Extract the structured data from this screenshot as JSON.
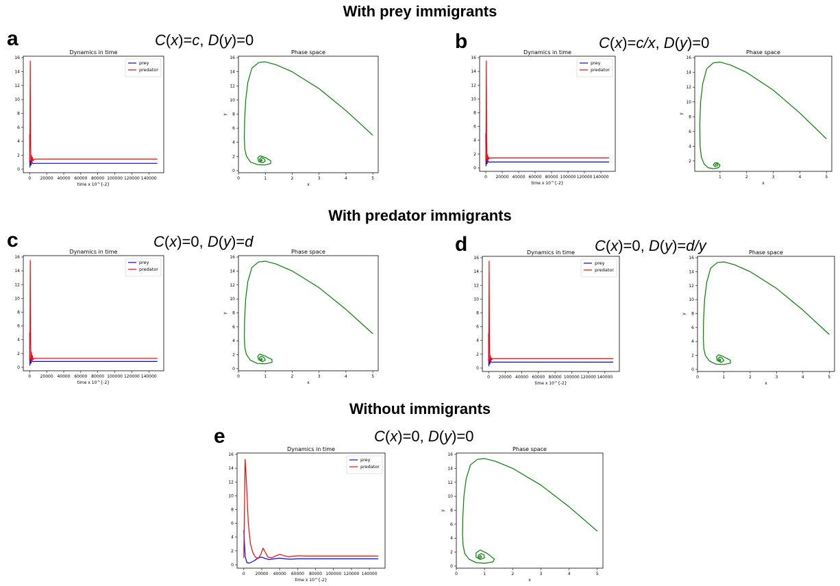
{
  "sections": {
    "prey": "With prey immigrants",
    "predator": "With predator immigrants",
    "none": "Without immigrants"
  },
  "panels": [
    {
      "letter": "a",
      "formula": {
        "c_val": "c",
        "d_val": "0"
      }
    },
    {
      "letter": "b",
      "formula": {
        "c_val": "c/x",
        "d_val": "0"
      }
    },
    {
      "letter": "c",
      "formula": {
        "c_val": "0",
        "d_val": "d"
      }
    },
    {
      "letter": "d",
      "formula": {
        "c_val": "0",
        "d_val": "d/y"
      }
    },
    {
      "letter": "e",
      "formula": {
        "c_val": "0",
        "d_val": "0"
      }
    }
  ],
  "formula_parts": {
    "c": "C",
    "d": "D",
    "x": "x",
    "y": "y",
    "open": "(",
    "close": ")=",
    "sep": ", "
  },
  "colors": {
    "prey": "#0000ff",
    "predator": "#ff0000",
    "phase": "#008000"
  },
  "chart_data": [
    {
      "panel": "a",
      "type": "line",
      "title": "Dynamics in time",
      "xlabel": "time x 10^{-2}",
      "ylabel": "",
      "xlim": [
        -7500,
        157500
      ],
      "ylim": [
        -0.5,
        16.2
      ],
      "xticks": [
        0,
        20000,
        40000,
        60000,
        80000,
        100000,
        120000,
        140000
      ],
      "yticks": [
        0,
        2,
        4,
        6,
        8,
        10,
        12,
        14,
        16
      ],
      "legend": "top-right",
      "series": [
        {
          "name": "prey",
          "color": "#0000ff",
          "x": [
            0,
            300,
            800,
            1500,
            2500,
            4000,
            6000,
            150000
          ],
          "y": [
            5.0,
            0.3,
            1.2,
            0.6,
            1.0,
            0.82,
            0.85,
            0.85
          ]
        },
        {
          "name": "predator",
          "color": "#ff0000",
          "x": [
            0,
            400,
            700,
            1100,
            1600,
            2100,
            2600,
            3200,
            4000,
            5000,
            150000
          ],
          "y": [
            1.0,
            6.0,
            15.5,
            4.0,
            0.8,
            2.0,
            1.0,
            1.7,
            1.2,
            1.45,
            1.45
          ]
        }
      ]
    },
    {
      "panel": "a",
      "type": "line",
      "title": "Phase space",
      "xlabel": "x",
      "ylabel": "y",
      "xlim": [
        0,
        5.2
      ],
      "ylim": [
        -0.3,
        16.2
      ],
      "xticks": [
        0,
        1,
        2,
        3,
        4,
        5
      ],
      "yticks": [
        0,
        2,
        4,
        6,
        8,
        10,
        12,
        14,
        16
      ],
      "series": [
        {
          "name": "",
          "color": "#008000",
          "x": [
            5.0,
            4.0,
            3.0,
            2.0,
            1.4,
            1.0,
            0.75,
            0.5,
            0.35,
            0.27,
            0.23,
            0.22,
            0.24,
            0.3,
            0.45,
            0.7,
            1.0,
            1.2,
            1.2,
            1.0,
            0.8,
            0.72,
            0.75,
            0.9,
            1.0,
            0.95,
            0.85,
            0.78,
            0.8,
            0.87,
            0.88,
            0.85,
            0.83,
            0.85
          ],
          "y": [
            5.0,
            8.5,
            11.6,
            14.0,
            15.0,
            15.4,
            15.3,
            14.5,
            12.5,
            10.0,
            7.0,
            4.5,
            3.0,
            2.0,
            1.2,
            0.85,
            0.8,
            1.0,
            1.4,
            1.85,
            2.1,
            1.8,
            1.3,
            1.1,
            1.35,
            1.7,
            1.85,
            1.6,
            1.35,
            1.35,
            1.5,
            1.6,
            1.5,
            1.45
          ]
        }
      ]
    },
    {
      "panel": "b",
      "type": "line",
      "title": "Dynamics in time",
      "xlabel": "time x 10^{-2}",
      "ylabel": "",
      "xlim": [
        -7500,
        157500
      ],
      "ylim": [
        -0.5,
        16.2
      ],
      "xticks": [
        0,
        20000,
        40000,
        60000,
        80000,
        100000,
        120000,
        140000
      ],
      "yticks": [
        0,
        2,
        4,
        6,
        8,
        10,
        12,
        14,
        16
      ],
      "legend": "top-right",
      "series": [
        {
          "name": "prey",
          "color": "#0000ff",
          "x": [
            0,
            300,
            800,
            1500,
            2500,
            4000,
            6000,
            150000
          ],
          "y": [
            5.0,
            0.3,
            1.2,
            0.6,
            1.0,
            0.82,
            0.85,
            0.85
          ]
        },
        {
          "name": "predator",
          "color": "#ff0000",
          "x": [
            0,
            400,
            700,
            1100,
            1600,
            2100,
            2600,
            3200,
            4000,
            5000,
            150000
          ],
          "y": [
            1.0,
            6.0,
            15.5,
            4.0,
            0.8,
            1.9,
            1.1,
            1.6,
            1.3,
            1.45,
            1.45
          ]
        }
      ]
    },
    {
      "panel": "b",
      "type": "line",
      "title": "Phase space",
      "xlabel": "x",
      "ylabel": "y",
      "xlim": [
        0.05,
        5.2
      ],
      "ylim": [
        0.6,
        16.2
      ],
      "xticks": [
        1,
        2,
        3,
        4,
        5
      ],
      "yticks": [
        2,
        4,
        6,
        8,
        10,
        12,
        14,
        16
      ],
      "series": [
        {
          "name": "",
          "color": "#008000",
          "x": [
            5.0,
            4.0,
            3.0,
            2.0,
            1.4,
            1.0,
            0.75,
            0.5,
            0.35,
            0.27,
            0.24,
            0.25,
            0.3,
            0.4,
            0.55,
            0.75,
            0.95,
            1.0,
            0.9,
            0.8,
            0.75,
            0.82,
            0.92,
            0.9,
            0.85,
            0.82,
            0.85
          ],
          "y": [
            5.0,
            8.5,
            11.6,
            14.0,
            15.0,
            15.4,
            15.3,
            14.5,
            12.5,
            10.0,
            7.0,
            4.0,
            2.5,
            1.6,
            1.1,
            0.95,
            1.1,
            1.45,
            1.75,
            1.75,
            1.45,
            1.25,
            1.4,
            1.6,
            1.6,
            1.45,
            1.45
          ]
        }
      ]
    },
    {
      "panel": "c",
      "type": "line",
      "title": "Dynamics in time",
      "xlabel": "time x 10^{-2}",
      "ylabel": "",
      "xlim": [
        -7500,
        157500
      ],
      "ylim": [
        -0.5,
        16.2
      ],
      "xticks": [
        0,
        20000,
        40000,
        60000,
        80000,
        100000,
        120000,
        140000
      ],
      "yticks": [
        0,
        2,
        4,
        6,
        8,
        10,
        12,
        14,
        16
      ],
      "legend": "top-right",
      "series": [
        {
          "name": "prey",
          "color": "#0000ff",
          "x": [
            0,
            300,
            800,
            1500,
            2500,
            4000,
            6000,
            150000
          ],
          "y": [
            5.0,
            0.3,
            1.2,
            0.6,
            1.0,
            0.82,
            0.85,
            0.85
          ]
        },
        {
          "name": "predator",
          "color": "#ff0000",
          "x": [
            0,
            400,
            700,
            1100,
            1600,
            2100,
            2600,
            3200,
            4000,
            5000,
            150000
          ],
          "y": [
            1.0,
            6.0,
            15.5,
            4.0,
            0.8,
            2.2,
            0.9,
            1.7,
            1.1,
            1.3,
            1.3
          ]
        }
      ]
    },
    {
      "panel": "c",
      "type": "line",
      "title": "Phase space",
      "xlabel": "x",
      "ylabel": "y",
      "xlim": [
        0,
        5.2
      ],
      "ylim": [
        -0.3,
        16.2
      ],
      "xticks": [
        0,
        1,
        2,
        3,
        4,
        5
      ],
      "yticks": [
        0,
        2,
        4,
        6,
        8,
        10,
        12,
        14,
        16
      ],
      "series": [
        {
          "name": "",
          "color": "#008000",
          "x": [
            5.0,
            4.0,
            3.0,
            2.0,
            1.4,
            1.0,
            0.75,
            0.5,
            0.35,
            0.27,
            0.23,
            0.22,
            0.24,
            0.3,
            0.45,
            0.7,
            1.0,
            1.25,
            1.25,
            1.0,
            0.8,
            0.72,
            0.75,
            0.9,
            1.0,
            0.95,
            0.85,
            0.78,
            0.8,
            0.87,
            0.88,
            0.85,
            0.83,
            0.85
          ],
          "y": [
            5.0,
            8.5,
            11.6,
            14.0,
            15.0,
            15.4,
            15.3,
            14.5,
            12.5,
            10.0,
            7.0,
            4.5,
            3.0,
            2.0,
            1.2,
            0.75,
            0.7,
            0.9,
            1.3,
            1.8,
            2.1,
            1.8,
            1.3,
            1.0,
            1.25,
            1.6,
            1.8,
            1.55,
            1.2,
            1.2,
            1.4,
            1.5,
            1.35,
            1.3
          ]
        }
      ]
    },
    {
      "panel": "d",
      "type": "line",
      "title": "Dynamics in time",
      "xlabel": "time x 10^{-2}",
      "ylabel": "",
      "xlim": [
        -7500,
        157500
      ],
      "ylim": [
        -0.5,
        16.2
      ],
      "xticks": [
        0,
        20000,
        40000,
        60000,
        80000,
        100000,
        120000,
        140000
      ],
      "yticks": [
        0,
        2,
        4,
        6,
        8,
        10,
        12,
        14,
        16
      ],
      "legend": "top-right",
      "series": [
        {
          "name": "prey",
          "color": "#0000ff",
          "x": [
            0,
            300,
            800,
            1500,
            2500,
            4000,
            6000,
            150000
          ],
          "y": [
            5.0,
            0.3,
            1.2,
            0.6,
            1.0,
            0.82,
            0.85,
            0.85
          ]
        },
        {
          "name": "predator",
          "color": "#ff0000",
          "x": [
            0,
            400,
            700,
            1100,
            1600,
            2100,
            2600,
            3200,
            4000,
            5000,
            150000
          ],
          "y": [
            1.0,
            6.0,
            15.5,
            4.0,
            0.7,
            1.8,
            1.0,
            1.5,
            1.2,
            1.35,
            1.35
          ]
        }
      ]
    },
    {
      "panel": "d",
      "type": "line",
      "title": "Phase space",
      "xlabel": "x",
      "ylabel": "y",
      "xlim": [
        0,
        5.2
      ],
      "ylim": [
        -0.3,
        16.2
      ],
      "xticks": [
        0,
        1,
        2,
        3,
        4,
        5
      ],
      "yticks": [
        0,
        2,
        4,
        6,
        8,
        10,
        12,
        14,
        16
      ],
      "series": [
        {
          "name": "",
          "color": "#008000",
          "x": [
            5.0,
            4.0,
            3.0,
            2.0,
            1.4,
            1.0,
            0.75,
            0.5,
            0.35,
            0.27,
            0.23,
            0.22,
            0.24,
            0.3,
            0.45,
            0.7,
            1.0,
            1.25,
            1.25,
            1.0,
            0.8,
            0.72,
            0.75,
            0.9,
            1.0,
            0.95,
            0.85,
            0.78,
            0.8,
            0.87,
            0.88,
            0.85,
            0.83,
            0.85
          ],
          "y": [
            5.0,
            8.5,
            11.6,
            14.0,
            15.0,
            15.4,
            15.3,
            14.5,
            12.5,
            10.0,
            7.0,
            4.5,
            3.0,
            2.0,
            1.2,
            0.75,
            0.7,
            0.9,
            1.3,
            1.8,
            2.1,
            1.8,
            1.3,
            1.0,
            1.25,
            1.6,
            1.8,
            1.55,
            1.2,
            1.2,
            1.4,
            1.5,
            1.35,
            1.3
          ]
        }
      ]
    },
    {
      "panel": "e",
      "type": "line",
      "title": "Dynamics in time",
      "xlabel": "time x 10^{-2}",
      "ylabel": "",
      "xlim": [
        -7500,
        157500
      ],
      "ylim": [
        -0.5,
        16.2
      ],
      "xticks": [
        0,
        20000,
        40000,
        60000,
        80000,
        100000,
        120000,
        140000
      ],
      "yticks": [
        0,
        2,
        4,
        6,
        8,
        10,
        12,
        14,
        16
      ],
      "legend": "top-right",
      "series": [
        {
          "name": "prey",
          "color": "#0000ff",
          "x": [
            0,
            1500,
            3500,
            6000,
            9000,
            12000,
            16000,
            20000,
            24000,
            28000,
            34000,
            40000,
            46000,
            52000,
            60000,
            150000
          ],
          "y": [
            5.0,
            1.2,
            0.3,
            0.25,
            0.4,
            0.6,
            1.0,
            1.1,
            0.9,
            0.75,
            0.85,
            0.95,
            0.85,
            0.8,
            0.85,
            0.85
          ]
        },
        {
          "name": "predator",
          "color": "#ff0000",
          "x": [
            0,
            1500,
            3000,
            5000,
            7500,
            10000,
            13000,
            16000,
            19000,
            21500,
            24000,
            27000,
            31000,
            36000,
            40000,
            44000,
            50000,
            56000,
            62000,
            70000,
            150000
          ],
          "y": [
            1.0,
            15.3,
            12.0,
            6.0,
            3.0,
            1.8,
            1.1,
            0.9,
            1.5,
            2.4,
            1.8,
            1.1,
            1.0,
            1.3,
            1.5,
            1.35,
            1.15,
            1.25,
            1.3,
            1.25,
            1.25
          ]
        }
      ]
    },
    {
      "panel": "e",
      "type": "line",
      "title": "Phase space",
      "xlabel": "x",
      "ylabel": "y",
      "xlim": [
        0,
        5.2
      ],
      "ylim": [
        -0.3,
        16.2
      ],
      "xticks": [
        0,
        1,
        2,
        3,
        4,
        5
      ],
      "yticks": [
        0,
        2,
        4,
        6,
        8,
        10,
        12,
        14,
        16
      ],
      "series": [
        {
          "name": "",
          "color": "#008000",
          "x": [
            5.0,
            4.0,
            3.0,
            2.0,
            1.4,
            1.0,
            0.75,
            0.5,
            0.35,
            0.27,
            0.23,
            0.22,
            0.24,
            0.3,
            0.45,
            0.7,
            1.0,
            1.3,
            1.35,
            1.1,
            0.85,
            0.7,
            0.7,
            0.85,
            1.0,
            0.98,
            0.88,
            0.78,
            0.78,
            0.86,
            0.9,
            0.86,
            0.82,
            0.84
          ],
          "y": [
            5.0,
            8.5,
            11.6,
            14.0,
            15.0,
            15.4,
            15.3,
            14.5,
            12.5,
            10.0,
            7.0,
            4.5,
            3.0,
            1.8,
            1.0,
            0.5,
            0.4,
            0.6,
            1.0,
            1.8,
            2.3,
            1.9,
            1.3,
            0.95,
            1.2,
            1.6,
            1.8,
            1.55,
            1.2,
            1.15,
            1.35,
            1.5,
            1.4,
            1.3
          ]
        }
      ]
    }
  ]
}
